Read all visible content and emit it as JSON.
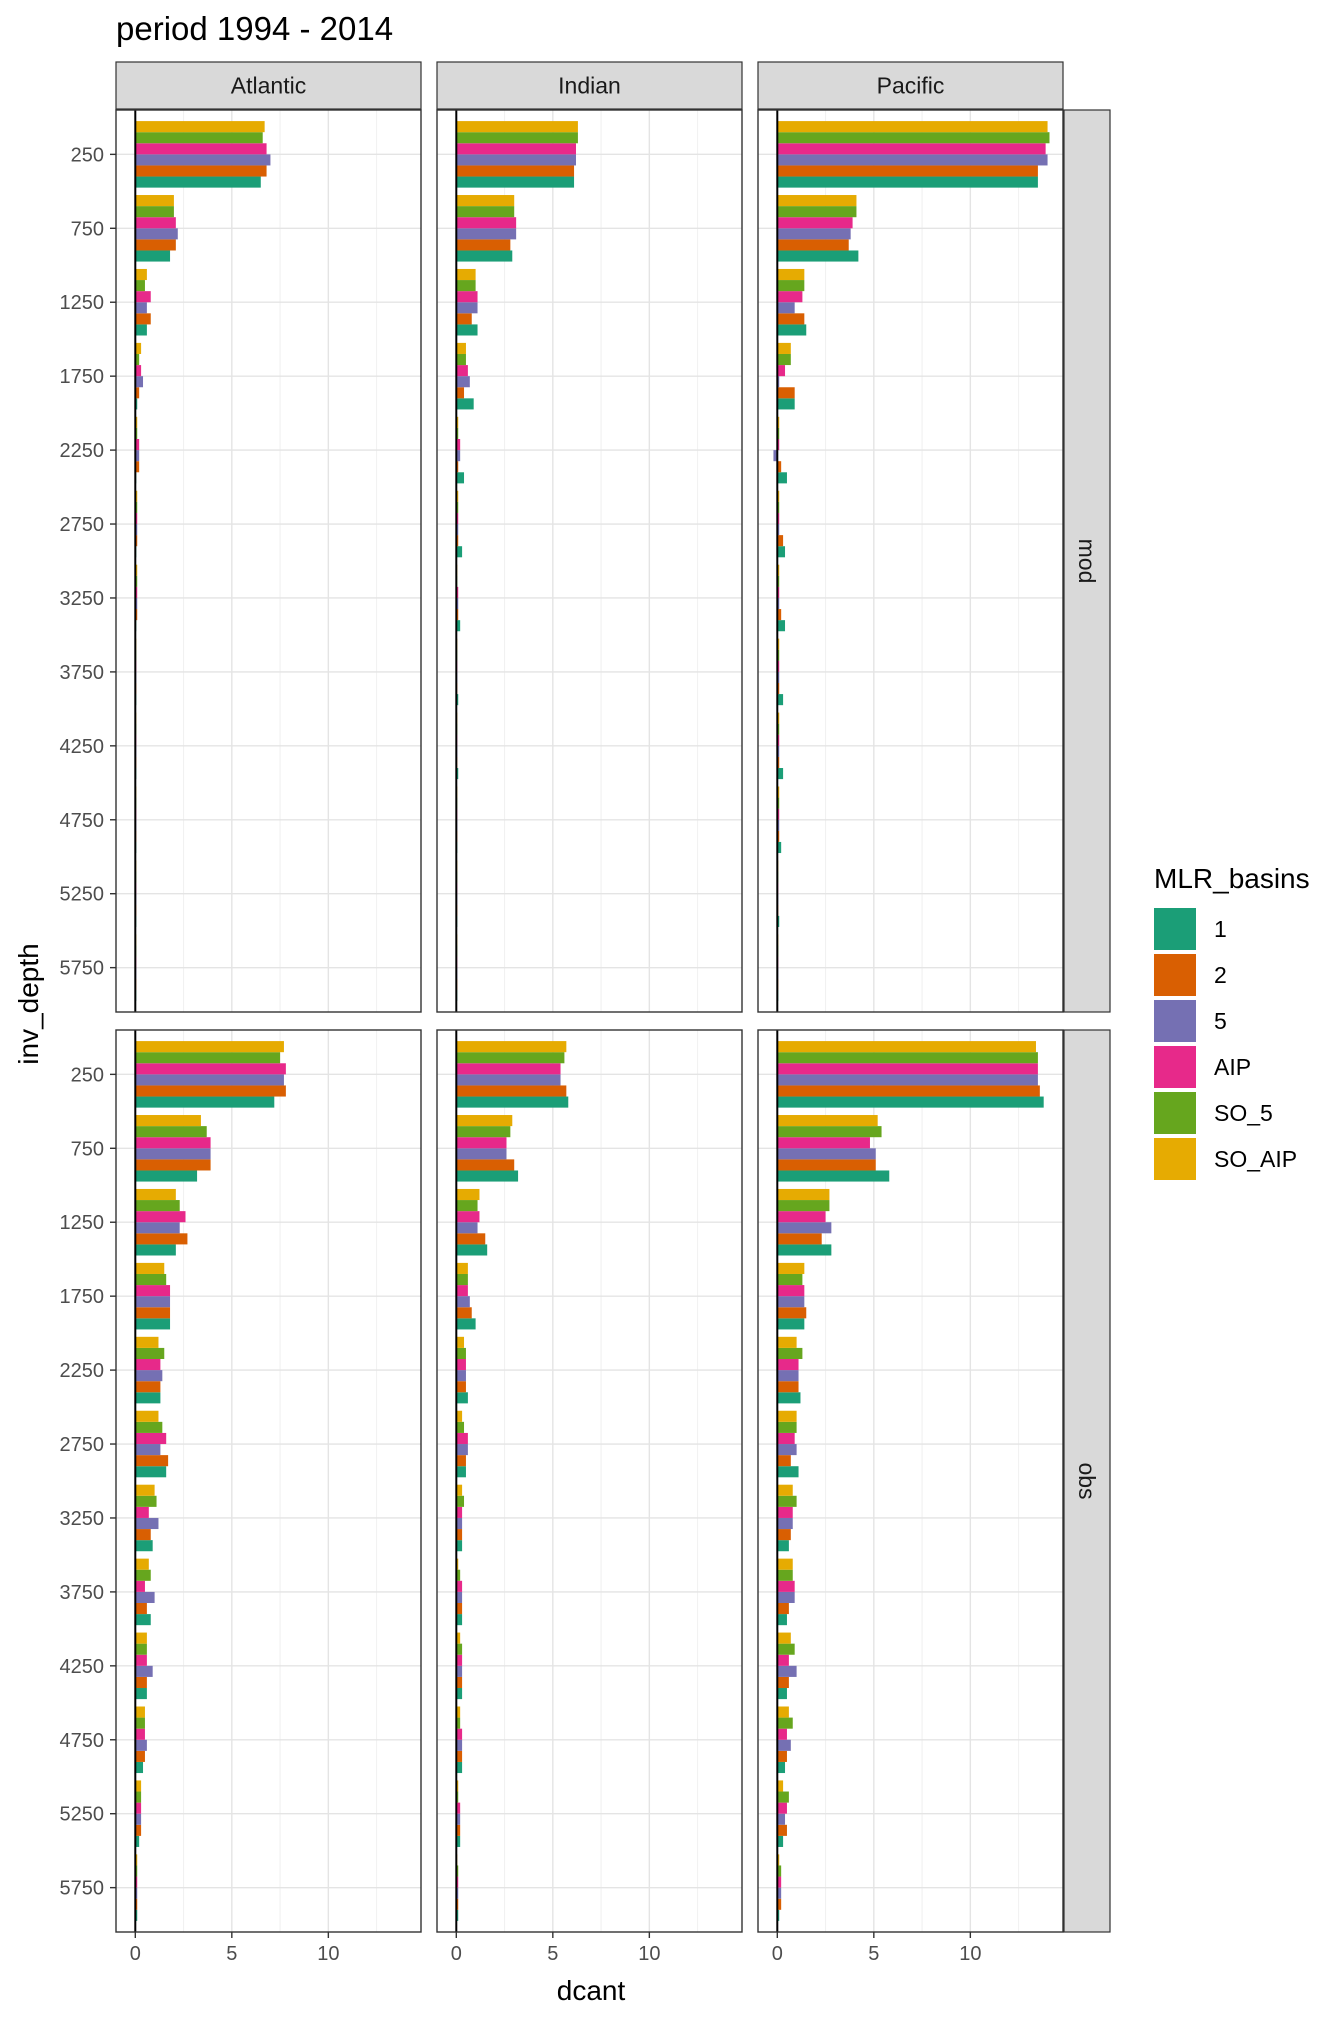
{
  "chart_data": {
    "type": "bar",
    "orientation": "horizontal",
    "title": "period 1994 - 2014",
    "xlabel": "dcant",
    "ylabel": "inv_depth",
    "xlim": [
      -1,
      14.8
    ],
    "x_ticks": [
      0,
      5,
      10
    ],
    "x_tick_labels": [
      "0",
      "5",
      "10"
    ],
    "depths": [
      250,
      750,
      1250,
      1750,
      2250,
      2750,
      3250,
      3750,
      4250,
      4750,
      5250,
      5750
    ],
    "depth_labels": [
      "250",
      "750",
      "1250",
      "1750",
      "2250",
      "2750",
      "3250",
      "3750",
      "4250",
      "4750",
      "5250",
      "5750"
    ],
    "y_reversed": true,
    "grid": true,
    "facet_cols": [
      "Atlantic",
      "Indian",
      "Pacific"
    ],
    "facet_rows": [
      "mod",
      "obs"
    ],
    "legend": {
      "title": "MLR_basins",
      "position": "right",
      "items": [
        {
          "label": "1",
          "color": "#1B9E77"
        },
        {
          "label": "2",
          "color": "#D95F02"
        },
        {
          "label": "5",
          "color": "#7570B3"
        },
        {
          "label": "AIP",
          "color": "#E7298A"
        },
        {
          "label": "SO_5",
          "color": "#66A61E"
        },
        {
          "label": "SO_AIP",
          "color": "#E6AB02"
        }
      ]
    },
    "series_order": [
      "1",
      "2",
      "5",
      "AIP",
      "SO_5",
      "SO_AIP"
    ],
    "panels": [
      {
        "row": "mod",
        "col": "Atlantic",
        "series": [
          {
            "name": "1",
            "values": [
              6.5,
              1.8,
              0.6,
              0.1,
              0.05,
              0.05,
              0.05,
              0.05,
              0.05,
              0.05,
              0.05,
              0.05
            ]
          },
          {
            "name": "2",
            "values": [
              6.8,
              2.1,
              0.8,
              0.2,
              0.2,
              0.1,
              0.1,
              0.05,
              0.05,
              0.05,
              0.05,
              0.05
            ]
          },
          {
            "name": "5",
            "values": [
              7.0,
              2.2,
              0.6,
              0.4,
              0.2,
              0.1,
              0.1,
              0.05,
              0.05,
              0.05,
              0.05,
              0.05
            ]
          },
          {
            "name": "AIP",
            "values": [
              6.8,
              2.1,
              0.8,
              0.3,
              0.2,
              0.1,
              0.1,
              0.05,
              0.05,
              0.05,
              0.05,
              0.05
            ]
          },
          {
            "name": "SO_5",
            "values": [
              6.6,
              2.0,
              0.5,
              0.2,
              0.1,
              0.1,
              0.1,
              0.05,
              0.05,
              0.05,
              0.05,
              0.05
            ]
          },
          {
            "name": "SO_AIP",
            "values": [
              6.7,
              2.0,
              0.6,
              0.3,
              0.1,
              0.1,
              0.1,
              0.05,
              0.05,
              0.05,
              0.05,
              0.05
            ]
          }
        ]
      },
      {
        "row": "mod",
        "col": "Indian",
        "series": [
          {
            "name": "1",
            "values": [
              6.1,
              2.9,
              1.1,
              0.9,
              0.4,
              0.3,
              0.2,
              0.1,
              0.1,
              0.05,
              0.05,
              0.05
            ]
          },
          {
            "name": "2",
            "values": [
              6.1,
              2.8,
              0.8,
              0.4,
              0.1,
              0.1,
              0.1,
              0.05,
              0.05,
              0.05,
              0.05,
              0.05
            ]
          },
          {
            "name": "5",
            "values": [
              6.2,
              3.1,
              1.1,
              0.7,
              0.2,
              0.1,
              0.1,
              0.05,
              0.05,
              0.05,
              0.05,
              0.05
            ]
          },
          {
            "name": "AIP",
            "values": [
              6.2,
              3.1,
              1.1,
              0.6,
              0.2,
              0.1,
              0.1,
              0.05,
              0.05,
              0.05,
              0.05,
              0.05
            ]
          },
          {
            "name": "SO_5",
            "values": [
              6.3,
              3.0,
              1.0,
              0.5,
              0.1,
              0.1,
              0.05,
              0.05,
              0.05,
              0.05,
              0.05,
              0.05
            ]
          },
          {
            "name": "SO_AIP",
            "values": [
              6.3,
              3.0,
              1.0,
              0.5,
              0.1,
              0.1,
              0.05,
              0.05,
              0.05,
              0.05,
              0.05,
              0.05
            ]
          }
        ]
      },
      {
        "row": "mod",
        "col": "Pacific",
        "series": [
          {
            "name": "1",
            "values": [
              13.5,
              4.2,
              1.5,
              0.9,
              0.5,
              0.4,
              0.4,
              0.3,
              0.3,
              0.2,
              0.1,
              0.05
            ]
          },
          {
            "name": "2",
            "values": [
              13.5,
              3.7,
              1.4,
              0.9,
              0.2,
              0.3,
              0.2,
              0.1,
              0.1,
              0.1,
              0.05,
              0.05
            ]
          },
          {
            "name": "5",
            "values": [
              14.0,
              3.8,
              0.9,
              0.1,
              -0.2,
              0.1,
              0.1,
              0.1,
              0.1,
              0.1,
              0.05,
              0.05
            ]
          },
          {
            "name": "AIP",
            "values": [
              13.9,
              3.9,
              1.3,
              0.4,
              0.1,
              0.1,
              0.1,
              0.1,
              0.1,
              0.1,
              0.05,
              0.05
            ]
          },
          {
            "name": "SO_5",
            "values": [
              14.1,
              4.1,
              1.4,
              0.7,
              0.1,
              0.1,
              0.1,
              0.1,
              0.1,
              0.1,
              0.05,
              0.05
            ]
          },
          {
            "name": "SO_AIP",
            "values": [
              14.0,
              4.1,
              1.4,
              0.7,
              0.1,
              0.1,
              0.1,
              0.1,
              0.1,
              0.1,
              0.05,
              0.05
            ]
          }
        ]
      },
      {
        "row": "obs",
        "col": "Atlantic",
        "series": [
          {
            "name": "1",
            "values": [
              7.2,
              3.2,
              2.1,
              1.8,
              1.3,
              1.6,
              0.9,
              0.8,
              0.6,
              0.4,
              0.2,
              0.1
            ]
          },
          {
            "name": "2",
            "values": [
              7.8,
              3.9,
              2.7,
              1.8,
              1.3,
              1.7,
              0.8,
              0.6,
              0.6,
              0.5,
              0.3,
              0.1
            ]
          },
          {
            "name": "5",
            "values": [
              7.7,
              3.9,
              2.3,
              1.8,
              1.4,
              1.3,
              1.2,
              1.0,
              0.9,
              0.6,
              0.3,
              0.1
            ]
          },
          {
            "name": "AIP",
            "values": [
              7.8,
              3.9,
              2.6,
              1.8,
              1.3,
              1.6,
              0.7,
              0.5,
              0.6,
              0.5,
              0.3,
              0.1
            ]
          },
          {
            "name": "SO_5",
            "values": [
              7.5,
              3.7,
              2.3,
              1.6,
              1.5,
              1.4,
              1.1,
              0.8,
              0.6,
              0.5,
              0.3,
              0.1
            ]
          },
          {
            "name": "SO_AIP",
            "values": [
              7.7,
              3.4,
              2.1,
              1.5,
              1.2,
              1.2,
              1.0,
              0.7,
              0.6,
              0.5,
              0.3,
              0.1
            ]
          }
        ]
      },
      {
        "row": "obs",
        "col": "Indian",
        "series": [
          {
            "name": "1",
            "values": [
              5.8,
              3.2,
              1.6,
              1.0,
              0.6,
              0.5,
              0.3,
              0.3,
              0.3,
              0.3,
              0.2,
              0.1
            ]
          },
          {
            "name": "2",
            "values": [
              5.7,
              3.0,
              1.5,
              0.8,
              0.5,
              0.5,
              0.3,
              0.3,
              0.3,
              0.3,
              0.2,
              0.1
            ]
          },
          {
            "name": "5",
            "values": [
              5.4,
              2.6,
              1.1,
              0.7,
              0.5,
              0.6,
              0.3,
              0.3,
              0.3,
              0.3,
              0.2,
              0.1
            ]
          },
          {
            "name": "AIP",
            "values": [
              5.4,
              2.6,
              1.2,
              0.6,
              0.5,
              0.6,
              0.3,
              0.3,
              0.3,
              0.3,
              0.2,
              0.1
            ]
          },
          {
            "name": "SO_5",
            "values": [
              5.6,
              2.8,
              1.1,
              0.6,
              0.5,
              0.4,
              0.4,
              0.2,
              0.3,
              0.2,
              0.1,
              0.1
            ]
          },
          {
            "name": "SO_AIP",
            "values": [
              5.7,
              2.9,
              1.2,
              0.6,
              0.4,
              0.3,
              0.3,
              0.1,
              0.2,
              0.2,
              0.1,
              0.05
            ]
          }
        ]
      },
      {
        "row": "obs",
        "col": "Pacific",
        "series": [
          {
            "name": "1",
            "values": [
              13.8,
              5.8,
              2.8,
              1.4,
              1.2,
              1.1,
              0.6,
              0.5,
              0.5,
              0.4,
              0.3,
              0.1
            ]
          },
          {
            "name": "2",
            "values": [
              13.6,
              5.1,
              2.3,
              1.5,
              1.1,
              0.7,
              0.7,
              0.6,
              0.6,
              0.5,
              0.5,
              0.2
            ]
          },
          {
            "name": "5",
            "values": [
              13.5,
              5.1,
              2.8,
              1.4,
              1.1,
              1.0,
              0.8,
              0.9,
              1.0,
              0.7,
              0.4,
              0.2
            ]
          },
          {
            "name": "AIP",
            "values": [
              13.5,
              4.8,
              2.5,
              1.4,
              1.1,
              0.9,
              0.8,
              0.9,
              0.6,
              0.5,
              0.5,
              0.2
            ]
          },
          {
            "name": "SO_5",
            "values": [
              13.5,
              5.4,
              2.7,
              1.3,
              1.3,
              1.0,
              1.0,
              0.8,
              0.9,
              0.8,
              0.6,
              0.2
            ]
          },
          {
            "name": "SO_AIP",
            "values": [
              13.4,
              5.2,
              2.7,
              1.4,
              1.0,
              1.0,
              0.8,
              0.8,
              0.7,
              0.6,
              0.3,
              0.1
            ]
          }
        ]
      }
    ]
  }
}
